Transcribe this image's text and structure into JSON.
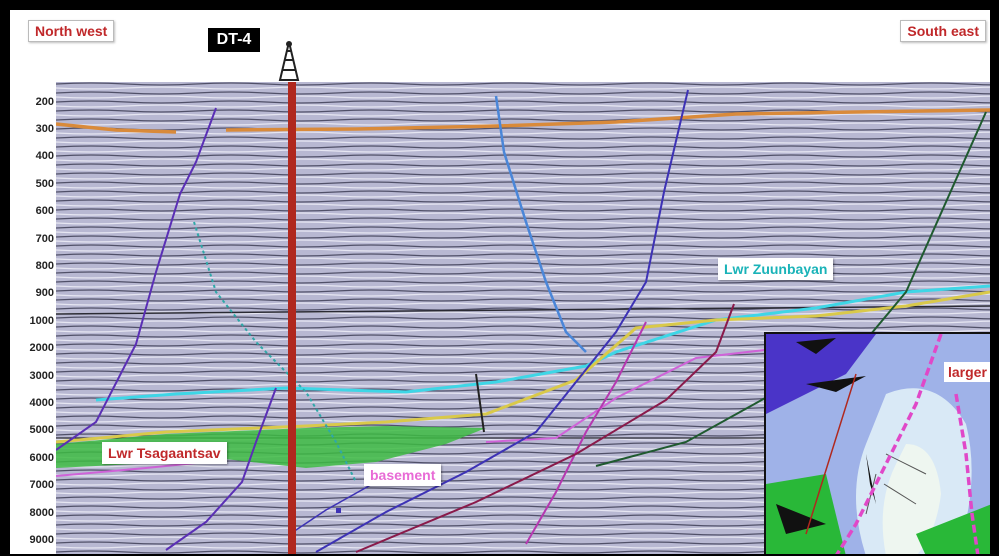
{
  "labels": {
    "north_west": "North west",
    "south_east": "South east",
    "well": "DT-4",
    "lwr_zuunbayan": "Lwr Zuunbayan",
    "lwr_tsagaantsav": "Lwr Tsagaantsav",
    "basement": "basement",
    "larger_closure": "larger f closure"
  },
  "depth_ticks": [
    "200",
    "300",
    "400",
    "500",
    "600",
    "700",
    "800",
    "900",
    "1000",
    "2000",
    "3000",
    "4000",
    "5000",
    "6000",
    "7000",
    "8000",
    "9000"
  ],
  "icons": {
    "rig": "drilling-rig-icon"
  },
  "colors": {
    "well": "#b0281e",
    "direction_text": "#c0282a",
    "zuunbayan_text": "#19b3b8",
    "tsagaantsav_text": "#c0282a",
    "basement_text": "#e86ad6",
    "green_unit": "#3dbb43",
    "cyan_horizon": "#3ed6e6",
    "yellow_horizon": "#d9c94a",
    "orange_horizon": "#d98a3a",
    "magenta_horizon": "#cf63d8"
  }
}
